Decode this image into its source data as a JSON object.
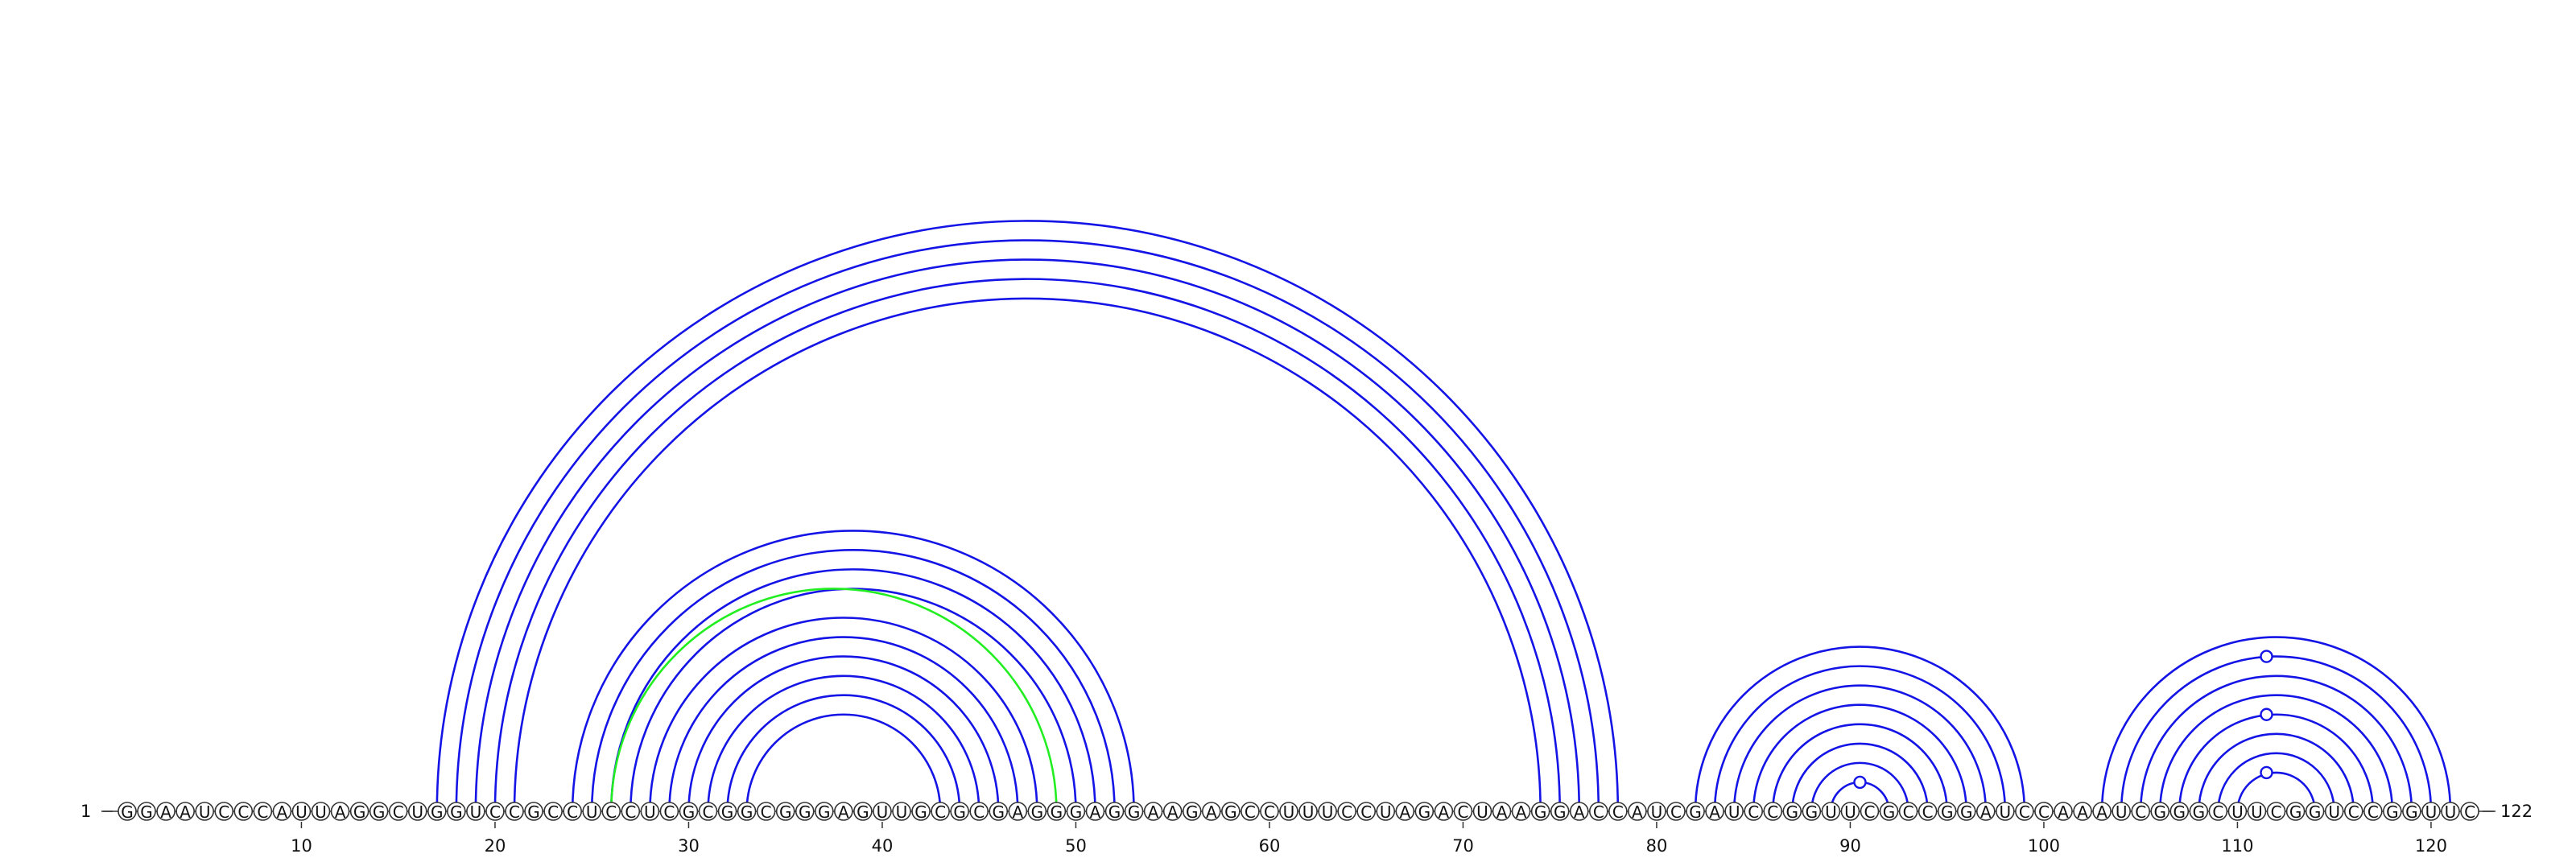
{
  "sequence": "GGAAUCCCAUUAGGCUGGUCCGCCUCCUCGCGGCGGGAGUUGCGCGAGGGAGGAAGAGCCUUUCCUAGACUAAGGACCAUCGAUCCGGUUCGCCGGAUCCAAAUCGGGCUUCGGUCCGGUUC",
  "start_label": "1",
  "end_label": "122",
  "tick_labels": [
    "10",
    "20",
    "30",
    "40",
    "50",
    "60",
    "70",
    "80",
    "90",
    "100",
    "110",
    "120"
  ],
  "colors": {
    "arc": "#1414e6",
    "highlight": "#22ee22"
  },
  "chart_data": {
    "type": "arc-diagram",
    "length": 122,
    "pairs": [
      [
        17,
        78
      ],
      [
        18,
        77
      ],
      [
        19,
        76
      ],
      [
        20,
        75
      ],
      [
        21,
        74
      ],
      [
        24,
        53
      ],
      [
        25,
        52
      ],
      [
        26,
        51
      ],
      [
        27,
        50
      ],
      [
        28,
        48
      ],
      [
        29,
        47
      ],
      [
        30,
        46
      ],
      [
        31,
        45
      ],
      [
        32,
        44
      ],
      [
        33,
        43
      ],
      [
        82,
        99
      ],
      [
        83,
        98
      ],
      [
        84,
        97
      ],
      [
        85,
        96
      ],
      [
        86,
        95
      ],
      [
        87,
        94
      ],
      [
        88,
        93
      ],
      [
        89,
        92
      ],
      [
        103,
        121
      ],
      [
        104,
        120
      ],
      [
        105,
        119
      ],
      [
        106,
        118
      ],
      [
        107,
        117
      ],
      [
        108,
        116
      ],
      [
        109,
        115
      ],
      [
        110,
        114
      ]
    ],
    "highlight_pairs": [
      [
        26,
        49
      ]
    ],
    "loop_markers": [
      90.5,
      111.5
    ],
    "stacked_markers": [
      111.5
    ]
  }
}
